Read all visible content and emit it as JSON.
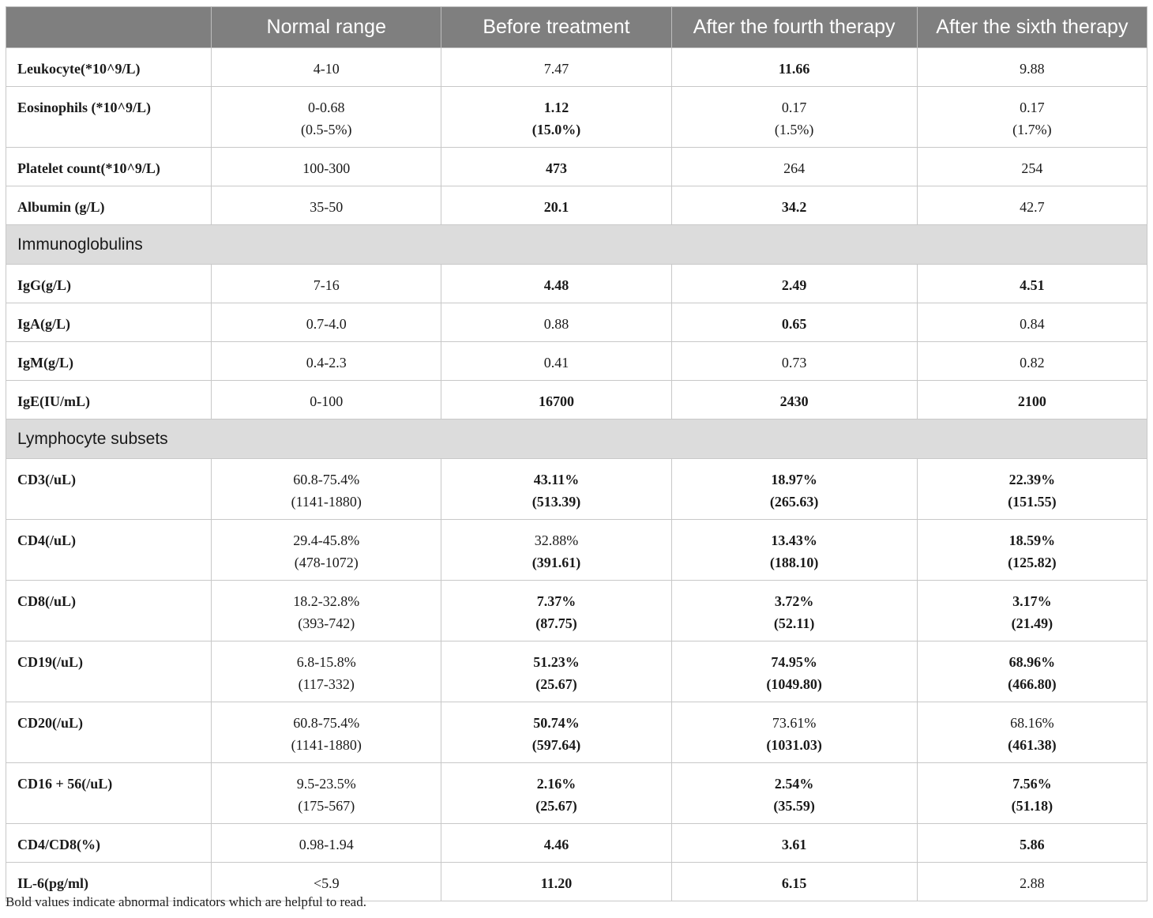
{
  "columns": [
    "",
    "Normal range",
    "Before treatment",
    "After the fourth therapy",
    "After the sixth therapy"
  ],
  "rows": [
    {
      "label": "Leukocyte(*10^9/L)",
      "cells": [
        [
          "4-10"
        ],
        [
          "7.47"
        ],
        [
          "11.66"
        ],
        [
          "9.88"
        ]
      ],
      "bold": [
        false,
        false,
        true,
        false
      ]
    },
    {
      "label": "Eosinophils (*10^9/L)",
      "cells": [
        [
          "0-0.68",
          "(0.5-5%)"
        ],
        [
          "1.12",
          "(15.0%)"
        ],
        [
          "0.17",
          "(1.5%)"
        ],
        [
          "0.17",
          "(1.7%)"
        ]
      ],
      "bold": [
        false,
        true,
        false,
        false
      ]
    },
    {
      "label": "Platelet count(*10^9/L)",
      "cells": [
        [
          "100-300"
        ],
        [
          "473"
        ],
        [
          "264"
        ],
        [
          "254"
        ]
      ],
      "bold": [
        false,
        true,
        false,
        false
      ]
    },
    {
      "label": "Albumin (g/L)",
      "cells": [
        [
          "35-50"
        ],
        [
          "20.1"
        ],
        [
          "34.2"
        ],
        [
          "42.7"
        ]
      ],
      "bold": [
        false,
        true,
        true,
        false
      ]
    },
    {
      "section": "Immunoglobulins"
    },
    {
      "label": "IgG(g/L)",
      "cells": [
        [
          "7-16"
        ],
        [
          "4.48"
        ],
        [
          "2.49"
        ],
        [
          "4.51"
        ]
      ],
      "bold": [
        false,
        true,
        true,
        true
      ]
    },
    {
      "label": "IgA(g/L)",
      "cells": [
        [
          "0.7-4.0"
        ],
        [
          "0.88"
        ],
        [
          "0.65"
        ],
        [
          "0.84"
        ]
      ],
      "bold": [
        false,
        false,
        true,
        false
      ]
    },
    {
      "label": "IgM(g/L)",
      "cells": [
        [
          "0.4-2.3"
        ],
        [
          "0.41"
        ],
        [
          "0.73"
        ],
        [
          "0.82"
        ]
      ],
      "bold": [
        false,
        false,
        false,
        false
      ]
    },
    {
      "label": "IgE(IU/mL)",
      "cells": [
        [
          "0-100"
        ],
        [
          "16700"
        ],
        [
          "2430"
        ],
        [
          "2100"
        ]
      ],
      "bold": [
        false,
        true,
        true,
        true
      ]
    },
    {
      "section": "Lymphocyte subsets"
    },
    {
      "label": "CD3(/uL)",
      "cells": [
        [
          "60.8-75.4%",
          "(1141-1880)"
        ],
        [
          "43.11%",
          "(513.39)"
        ],
        [
          "18.97%",
          "(265.63)"
        ],
        [
          "22.39%",
          "(151.55)"
        ]
      ],
      "bold": [
        false,
        true,
        true,
        true
      ]
    },
    {
      "label": "CD4(/uL)",
      "cells": [
        [
          "29.4-45.8%",
          "(478-1072)"
        ],
        [
          "32.88%",
          "(391.61)"
        ],
        [
          "13.43%",
          "(188.10)"
        ],
        [
          "18.59%",
          "(125.82)"
        ]
      ],
      "bold": [
        false,
        "second",
        true,
        true
      ]
    },
    {
      "label": "CD8(/uL)",
      "cells": [
        [
          "18.2-32.8%",
          "(393-742)"
        ],
        [
          "7.37%",
          "(87.75)"
        ],
        [
          "3.72%",
          "(52.11)"
        ],
        [
          "3.17%",
          "(21.49)"
        ]
      ],
      "bold": [
        false,
        true,
        true,
        true
      ]
    },
    {
      "label": "CD19(/uL)",
      "cells": [
        [
          "6.8-15.8%",
          "(117-332)"
        ],
        [
          "51.23%",
          "(25.67)"
        ],
        [
          "74.95%",
          "(1049.80)"
        ],
        [
          "68.96%",
          "(466.80)"
        ]
      ],
      "bold": [
        false,
        true,
        true,
        true
      ]
    },
    {
      "label": "CD20(/uL)",
      "cells": [
        [
          "60.8-75.4%",
          "(1141-1880)"
        ],
        [
          "50.74%",
          "(597.64)"
        ],
        [
          "73.61%",
          "(1031.03)"
        ],
        [
          "68.16%",
          "(461.38)"
        ]
      ],
      "bold": [
        false,
        true,
        "second",
        "second"
      ]
    },
    {
      "label": "CD16 + 56(/uL)",
      "cells": [
        [
          "9.5-23.5%",
          "(175-567)"
        ],
        [
          "2.16%",
          "(25.67)"
        ],
        [
          "2.54%",
          "(35.59)"
        ],
        [
          "7.56%",
          "(51.18)"
        ]
      ],
      "bold": [
        false,
        true,
        true,
        true
      ]
    },
    {
      "label": "CD4/CD8(%)",
      "cells": [
        [
          "0.98-1.94"
        ],
        [
          "4.46"
        ],
        [
          "3.61"
        ],
        [
          "5.86"
        ]
      ],
      "bold": [
        false,
        true,
        true,
        true
      ]
    },
    {
      "label": "IL-6(pg/ml)",
      "cells": [
        [
          "<5.9"
        ],
        [
          "11.20"
        ],
        [
          "6.15"
        ],
        [
          "2.88"
        ]
      ],
      "bold": [
        false,
        true,
        true,
        false
      ]
    }
  ],
  "footnote": "Bold values indicate abnormal indicators which are helpful to read."
}
